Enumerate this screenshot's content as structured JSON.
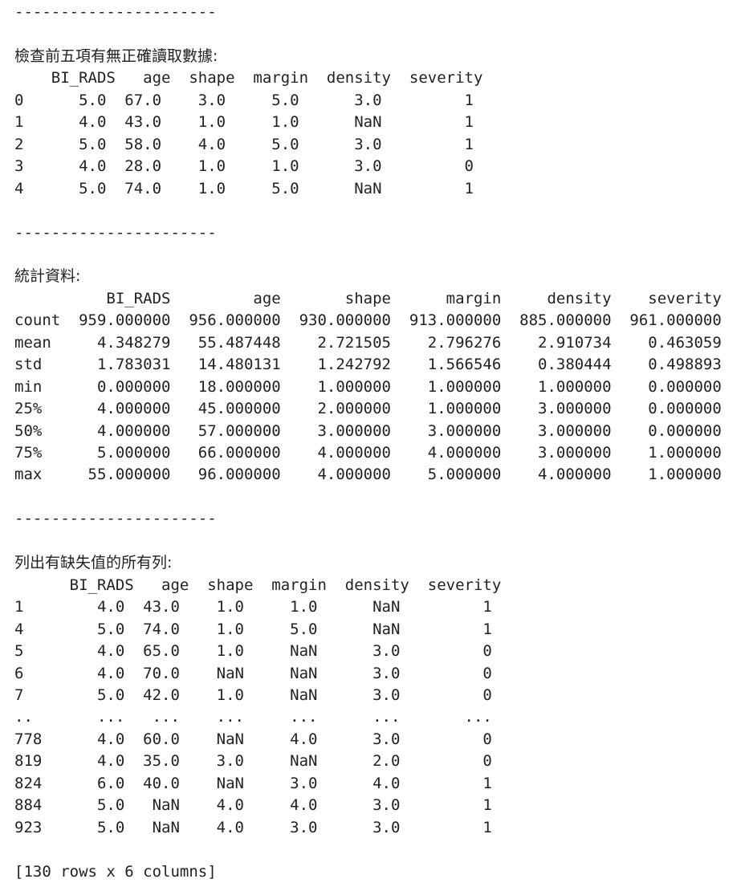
{
  "output": {
    "lines": [
      "----------------------",
      "",
      "檢查前五項有無正確讀取數據:",
      "    BI_RADS   age  shape  margin  density  severity",
      "0      5.0  67.0    3.0     5.0      3.0         1",
      "1      4.0  43.0    1.0     1.0      NaN         1",
      "2      5.0  58.0    4.0     5.0      3.0         1",
      "3      4.0  28.0    1.0     1.0      3.0         0",
      "4      5.0  74.0    1.0     5.0      NaN         1",
      "",
      "----------------------",
      "",
      "統計資料:",
      "          BI_RADS         age       shape      margin     density    severity",
      "count  959.000000  956.000000  930.000000  913.000000  885.000000  961.000000",
      "mean     4.348279   55.487448    2.721505    2.796276    2.910734    0.463059",
      "std      1.783031   14.480131    1.242792    1.566546    0.380444    0.498893",
      "min      0.000000   18.000000    1.000000    1.000000    1.000000    0.000000",
      "25%      4.000000   45.000000    2.000000    1.000000    3.000000    0.000000",
      "50%      4.000000   57.000000    3.000000    3.000000    3.000000    0.000000",
      "75%      5.000000   66.000000    4.000000    4.000000    3.000000    1.000000",
      "max     55.000000   96.000000    4.000000    5.000000    4.000000    1.000000",
      "",
      "----------------------",
      "",
      "列出有缺失值的所有列:",
      "      BI_RADS   age  shape  margin  density  severity",
      "1        4.0  43.0    1.0     1.0      NaN         1",
      "4        5.0  74.0    1.0     5.0      NaN         1",
      "5        4.0  65.0    1.0     NaN      3.0         0",
      "6        4.0  70.0    NaN     NaN      3.0         0",
      "7        5.0  42.0    1.0     NaN      3.0         0",
      "..       ...   ...    ...     ...      ...       ...",
      "778      4.0  60.0    NaN     4.0      3.0         0",
      "819      4.0  35.0    3.0     NaN      2.0         0",
      "824      6.0  40.0    NaN     3.0      4.0         1",
      "884      5.0   NaN    4.0     4.0      3.0         1",
      "923      5.0   NaN    4.0     3.0      3.0         1",
      "",
      "[130 rows x 6 columns]"
    ]
  }
}
